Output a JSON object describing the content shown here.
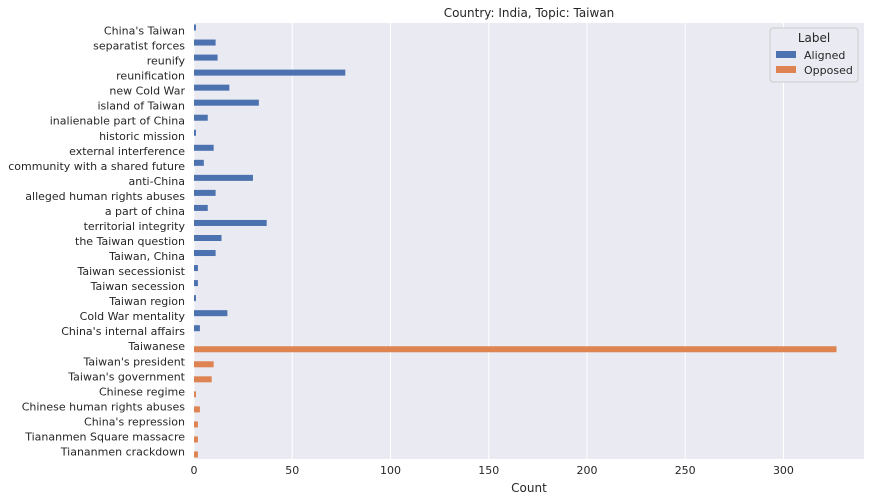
{
  "chart_data": {
    "type": "bar",
    "orientation": "horizontal",
    "title": "Country: India, Topic: Taiwan",
    "xlabel": "Count",
    "ylabel": "",
    "xlim": [
      0,
      341
    ],
    "xticks": [
      0,
      50,
      100,
      150,
      200,
      250,
      300
    ],
    "grid": true,
    "legend": {
      "title": "Label",
      "placement": "top-right",
      "entries": [
        {
          "name": "Aligned",
          "color": "#4c72b0"
        },
        {
          "name": "Opposed",
          "color": "#dd8452"
        }
      ]
    },
    "categories": [
      "China's Taiwan",
      "separatist forces",
      "reunify",
      "reunification",
      "new Cold War",
      "island of Taiwan",
      "inalienable part of China",
      "historic mission",
      "external interference",
      "community with a shared future",
      "anti-China",
      "alleged human rights abuses",
      "a part of china",
      "territorial integrity",
      "the Taiwan question",
      "Taiwan, China",
      "Taiwan secessionist",
      "Taiwan secession",
      "Taiwan region",
      "Cold War mentality",
      "China's internal affairs",
      "Taiwanese",
      "Taiwan's president",
      "Taiwan's government",
      "Chinese regime",
      "Chinese human rights abuses",
      "China's repression",
      "Tiananmen Square massacre",
      "Tiananmen crackdown"
    ],
    "series": [
      {
        "name": "Aligned",
        "values": [
          1,
          11,
          12,
          77,
          18,
          33,
          7,
          1,
          10,
          5,
          30,
          11,
          7,
          37,
          14,
          11,
          2,
          2,
          1,
          17,
          3,
          0,
          0,
          0,
          0,
          0,
          0,
          0,
          0
        ]
      },
      {
        "name": "Opposed",
        "values": [
          0,
          0,
          0,
          0,
          0,
          0,
          0,
          0,
          0,
          0,
          0,
          0,
          0,
          0,
          0,
          0,
          0,
          0,
          0,
          0,
          0,
          327,
          10,
          9,
          1,
          3,
          2,
          2,
          2
        ]
      }
    ],
    "colors": {
      "background": "#eaeaf2",
      "grid": "#ffffff",
      "aligned": "#4c72b0",
      "opposed": "#dd8452"
    }
  }
}
